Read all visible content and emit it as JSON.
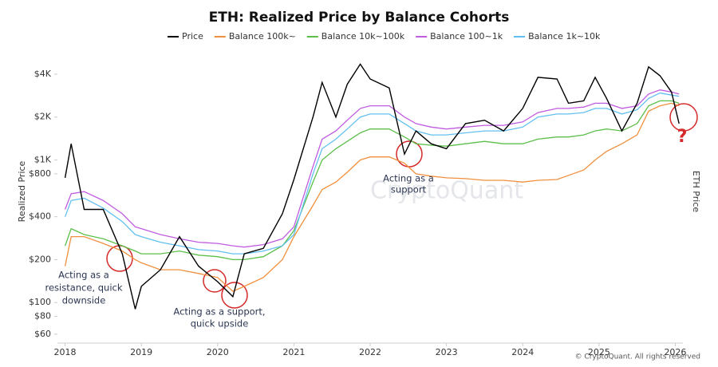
{
  "chart_data": {
    "type": "line",
    "title": "ETH: Realized Price by Balance Cohorts",
    "y_label": "Realized Price",
    "y2_label": "ETH Price",
    "watermark": "CryptoQuant",
    "footer": "© CryptoQuant. All rights reserved",
    "log_scale": true,
    "annotations": [
      {
        "lines": [
          "Acting as a",
          "resistance, quick",
          "downside"
        ]
      },
      {
        "lines": [
          "Acting as a support,",
          "quick upside"
        ]
      },
      {
        "lines": [
          "Acting as a",
          "support"
        ]
      },
      {
        "lines": [
          "?"
        ]
      }
    ],
    "x": [
      2018.0,
      2018.08,
      2018.25,
      2018.5,
      2018.75,
      2018.92,
      2019.0,
      2019.25,
      2019.5,
      2019.75,
      2020.0,
      2020.2,
      2020.35,
      2020.6,
      2020.85,
      2021.0,
      2021.25,
      2021.37,
      2021.55,
      2021.7,
      2021.87,
      2022.0,
      2022.25,
      2022.45,
      2022.6,
      2022.8,
      2023.0,
      2023.25,
      2023.5,
      2023.75,
      2024.0,
      2024.2,
      2024.45,
      2024.6,
      2024.8,
      2024.95,
      2025.1,
      2025.3,
      2025.5,
      2025.65,
      2025.8,
      2025.95,
      2026.05
    ],
    "series": [
      {
        "name": "Price",
        "color": "#000000",
        "values": [
          750,
          1300,
          450,
          450,
          220,
          90,
          130,
          170,
          290,
          180,
          140,
          110,
          220,
          240,
          420,
          730,
          2000,
          3500,
          2000,
          3400,
          4700,
          3700,
          3200,
          1100,
          1600,
          1300,
          1200,
          1800,
          1900,
          1600,
          2300,
          3800,
          3700,
          2500,
          2600,
          3800,
          2700,
          1600,
          2500,
          4500,
          3900,
          3000,
          1800
        ]
      },
      {
        "name": "Balance 100k~",
        "color": "#f0903e",
        "values": [
          180,
          290,
          290,
          260,
          230,
          200,
          190,
          170,
          170,
          160,
          150,
          120,
          130,
          150,
          200,
          290,
          480,
          620,
          700,
          820,
          1000,
          1050,
          1050,
          950,
          800,
          770,
          750,
          740,
          720,
          720,
          700,
          720,
          730,
          780,
          850,
          1000,
          1150,
          1300,
          1500,
          2200,
          2400,
          2500,
          2400
        ]
      },
      {
        "name": "Balance 10k~100k",
        "color": "#5cbf4a",
        "values": [
          250,
          330,
          300,
          280,
          250,
          230,
          220,
          220,
          230,
          215,
          210,
          200,
          200,
          210,
          250,
          320,
          700,
          1000,
          1200,
          1350,
          1550,
          1650,
          1650,
          1450,
          1300,
          1270,
          1250,
          1300,
          1350,
          1300,
          1300,
          1400,
          1450,
          1450,
          1500,
          1600,
          1650,
          1600,
          1800,
          2400,
          2600,
          2600,
          2500
        ]
      },
      {
        "name": "Balance 100~1k",
        "color": "#c05ce0",
        "values": [
          450,
          580,
          600,
          520,
          420,
          340,
          330,
          300,
          280,
          265,
          260,
          250,
          245,
          255,
          280,
          340,
          900,
          1400,
          1600,
          1900,
          2300,
          2400,
          2400,
          2000,
          1800,
          1700,
          1650,
          1700,
          1750,
          1750,
          1850,
          2150,
          2300,
          2300,
          2350,
          2500,
          2500,
          2300,
          2400,
          2900,
          3100,
          3000,
          2900
        ]
      },
      {
        "name": "Balance 1k~10k",
        "color": "#62c0f0",
        "values": [
          400,
          520,
          540,
          460,
          370,
          300,
          290,
          265,
          250,
          235,
          230,
          220,
          220,
          230,
          250,
          300,
          800,
          1200,
          1400,
          1650,
          2000,
          2100,
          2100,
          1800,
          1600,
          1500,
          1500,
          1550,
          1600,
          1600,
          1700,
          2000,
          2100,
          2100,
          2150,
          2300,
          2300,
          2100,
          2250,
          2700,
          2950,
          2850,
          2800
        ]
      }
    ],
    "xlim": [
      2017.9,
      2026.1
    ],
    "xticks": [
      2018,
      2019,
      2020,
      2021,
      2022,
      2023,
      2024,
      2025,
      2026
    ],
    "ylim": [
      52,
      5040
    ],
    "yticks": [
      {
        "value": 60,
        "label": "$60"
      },
      {
        "value": 80,
        "label": "$80"
      },
      {
        "value": 100,
        "label": "$100"
      },
      {
        "value": 200,
        "label": "$200"
      },
      {
        "value": 400,
        "label": "$400"
      },
      {
        "value": 800,
        "label": "$800"
      },
      {
        "value": 1000,
        "label": "$1K"
      },
      {
        "value": 2000,
        "label": "$2K"
      },
      {
        "value": 4000,
        "label": "$4K"
      }
    ]
  }
}
